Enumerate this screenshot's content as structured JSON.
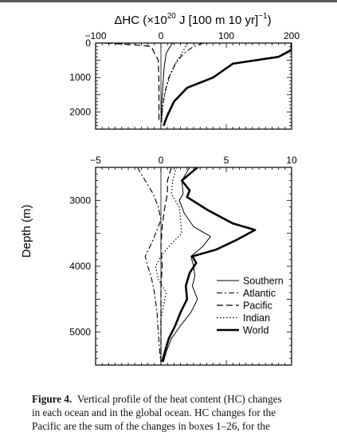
{
  "figure": {
    "top_axis_title": "ΔHC (×10",
    "top_axis_title_sup": "20",
    "top_axis_title_rest": " J [100 m 10 yr]",
    "top_axis_title_sup2": "−1",
    "top_axis_title_close": ")",
    "ylabel": "Depth (m)"
  },
  "caption": {
    "label": "Figure 4.",
    "line1": "Vertical profile of the heat content (HC) changes",
    "line2": "in each ocean and in the global ocean. HC changes for the",
    "line3": "Pacific are the sum of the changes in boxes 1–26, for the"
  },
  "chart_data": [
    {
      "type": "line",
      "panel": "upper",
      "xlim": [
        -100,
        200
      ],
      "ylim": [
        2500,
        0
      ],
      "x_ticks": [
        -100,
        0,
        100,
        200
      ],
      "x_tick_labels": [
        "−100",
        "0",
        "100",
        "200"
      ],
      "y_ticks": [
        0,
        1000,
        2000
      ],
      "y_tick_labels": [
        "0",
        "1000",
        "2000"
      ],
      "series": [
        {
          "name": "Southern",
          "style": "solid-thin",
          "points": [
            [
              18,
              0
            ],
            [
              14,
              100
            ],
            [
              8,
              300
            ],
            [
              5,
              700
            ],
            [
              3,
              1200
            ],
            [
              1,
              1800
            ],
            [
              1,
              2300
            ]
          ]
        },
        {
          "name": "Atlantic",
          "style": "dash-dot",
          "points": [
            [
              65,
              0
            ],
            [
              50,
              100
            ],
            [
              35,
              300
            ],
            [
              22,
              600
            ],
            [
              12,
              1000
            ],
            [
              5,
              1500
            ],
            [
              2,
              2000
            ],
            [
              0,
              2300
            ]
          ]
        },
        {
          "name": "Pacific",
          "style": "dashed",
          "points": [
            [
              -85,
              0
            ],
            [
              -40,
              50
            ],
            [
              -15,
              100
            ],
            [
              -4,
              500
            ],
            [
              -3,
              1200
            ],
            [
              -3,
              2000
            ],
            [
              -3,
              2300
            ]
          ]
        },
        {
          "name": "Indian",
          "style": "dotted",
          "points": [
            [
              40,
              0
            ],
            [
              35,
              200
            ],
            [
              25,
              500
            ],
            [
              15,
              900
            ],
            [
              8,
              1300
            ],
            [
              3,
              1800
            ],
            [
              1,
              2300
            ]
          ]
        },
        {
          "name": "World",
          "style": "solid-thick",
          "points": [
            [
              200,
              0
            ],
            [
              200,
              200
            ],
            [
              180,
              400
            ],
            [
              110,
              600
            ],
            [
              80,
              1000
            ],
            [
              40,
              1300
            ],
            [
              20,
              1700
            ],
            [
              10,
              2100
            ],
            [
              4,
              2400
            ]
          ]
        }
      ]
    },
    {
      "type": "line",
      "panel": "lower",
      "xlim": [
        -5,
        10
      ],
      "ylim": [
        5500,
        2500
      ],
      "x_ticks": [
        -5,
        0,
        5,
        10
      ],
      "x_tick_labels": [
        "−5",
        "0",
        "5",
        "10"
      ],
      "y_ticks": [
        3000,
        4000,
        5000
      ],
      "y_tick_labels": [
        "3000",
        "4000",
        "5000"
      ],
      "ylabel": "Depth (m)",
      "legend_position": "bottom-right",
      "series": [
        {
          "name": "Southern",
          "style": "solid-thin",
          "points": [
            [
              2.2,
              2500
            ],
            [
              1.6,
              2700
            ],
            [
              1.7,
              2900
            ],
            [
              1.4,
              3000
            ],
            [
              1.8,
              3200
            ],
            [
              2.5,
              3400
            ],
            [
              3.8,
              3550
            ],
            [
              3.2,
              3700
            ],
            [
              2.3,
              3850
            ],
            [
              2.5,
              4000
            ],
            [
              2.6,
              4150
            ],
            [
              2.4,
              4300
            ],
            [
              2.8,
              4500
            ],
            [
              2.3,
              4700
            ],
            [
              1.5,
              4900
            ],
            [
              0.8,
              5100
            ],
            [
              0.4,
              5300
            ],
            [
              0.2,
              5450
            ]
          ]
        },
        {
          "name": "Atlantic",
          "style": "dash-dot",
          "points": [
            [
              -1.8,
              2500
            ],
            [
              -1.2,
              2700
            ],
            [
              -0.6,
              2900
            ],
            [
              -0.2,
              3100
            ],
            [
              0.0,
              3300
            ],
            [
              -0.6,
              3600
            ],
            [
              -1.2,
              3850
            ],
            [
              -1.0,
              4000
            ],
            [
              -0.7,
              4200
            ],
            [
              -0.5,
              4400
            ],
            [
              -0.3,
              4700
            ],
            [
              -0.2,
              5000
            ],
            [
              -0.1,
              5300
            ],
            [
              0.0,
              5450
            ]
          ]
        },
        {
          "name": "Pacific",
          "style": "dashed",
          "points": [
            [
              0.8,
              2500
            ],
            [
              0.5,
              2700
            ],
            [
              0.5,
              2900
            ],
            [
              0.3,
              3100
            ],
            [
              0.1,
              3400
            ],
            [
              0.0,
              3700
            ],
            [
              0.1,
              4000
            ],
            [
              0.0,
              4300
            ],
            [
              0.0,
              4700
            ],
            [
              0.0,
              5100
            ],
            [
              0.0,
              5450
            ]
          ]
        },
        {
          "name": "Indian",
          "style": "dotted",
          "points": [
            [
              1.2,
              2500
            ],
            [
              0.9,
              2700
            ],
            [
              0.8,
              2900
            ],
            [
              1.4,
              3100
            ],
            [
              1.5,
              3300
            ],
            [
              1.6,
              3500
            ],
            [
              0.6,
              3700
            ],
            [
              0.0,
              3850
            ],
            [
              -0.4,
              4000
            ],
            [
              -0.2,
              4200
            ],
            [
              0.4,
              4400
            ],
            [
              0.2,
              4600
            ],
            [
              0.0,
              4800
            ],
            [
              0.0,
              5100
            ],
            [
              0.0,
              5450
            ]
          ]
        },
        {
          "name": "World",
          "style": "solid-thick",
          "points": [
            [
              2.8,
              2500
            ],
            [
              1.6,
              2700
            ],
            [
              2.2,
              2850
            ],
            [
              2.0,
              2950
            ],
            [
              3.6,
              3150
            ],
            [
              5.5,
              3350
            ],
            [
              7.2,
              3450
            ],
            [
              5.8,
              3600
            ],
            [
              4.2,
              3750
            ],
            [
              2.4,
              3850
            ],
            [
              2.7,
              3950
            ],
            [
              2.2,
              4100
            ],
            [
              1.9,
              4300
            ],
            [
              2.0,
              4500
            ],
            [
              1.5,
              4700
            ],
            [
              1.1,
              4900
            ],
            [
              0.6,
              5100
            ],
            [
              0.3,
              5300
            ],
            [
              0.1,
              5450
            ]
          ]
        }
      ]
    }
  ]
}
